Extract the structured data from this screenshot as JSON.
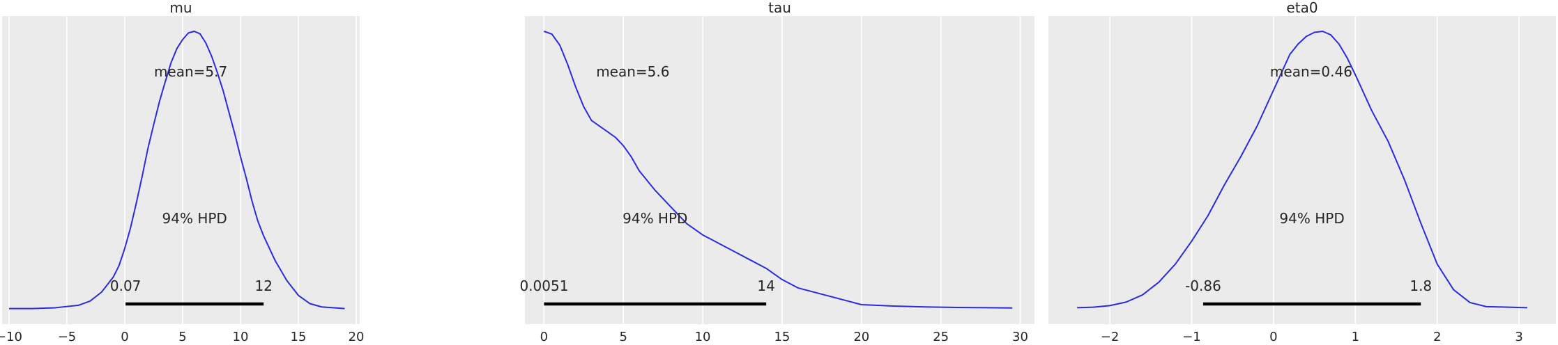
{
  "chart_data": [
    {
      "type": "line",
      "title": "mu",
      "xlim": [
        -10.6,
        20.3
      ],
      "xticks": [
        -10,
        -5,
        0,
        5,
        10,
        15,
        20
      ],
      "x": [
        -10,
        -8,
        -6,
        -4,
        -3,
        -2,
        -1,
        -0.5,
        0,
        0.5,
        1,
        1.5,
        2,
        2.5,
        3,
        3.5,
        4,
        4.5,
        5,
        5.5,
        6,
        6.5,
        7,
        7.5,
        8,
        8.5,
        9,
        9.5,
        10,
        10.5,
        11,
        11.5,
        12,
        12.5,
        13,
        14,
        15,
        16,
        17,
        19
      ],
      "y": [
        0.002,
        0.002,
        0.003,
        0.006,
        0.011,
        0.022,
        0.04,
        0.054,
        0.075,
        0.1,
        0.13,
        0.162,
        0.196,
        0.225,
        0.253,
        0.277,
        0.3,
        0.317,
        0.328,
        0.336,
        0.338,
        0.335,
        0.324,
        0.308,
        0.288,
        0.266,
        0.24,
        0.214,
        0.186,
        0.16,
        0.132,
        0.108,
        0.09,
        0.075,
        0.06,
        0.036,
        0.018,
        0.008,
        0.004,
        0.002
      ],
      "mean_label": "mean=5.7",
      "hpd_label": "94% HPD",
      "hpd": [
        0.07,
        12
      ],
      "hpd_labels": [
        "0.07",
        "12"
      ]
    },
    {
      "type": "line",
      "title": "tau",
      "xlim": [
        -1.2,
        30.9
      ],
      "xticks": [
        0,
        5,
        10,
        15,
        20,
        25,
        30
      ],
      "x": [
        0,
        0.5,
        1,
        1.5,
        2,
        2.5,
        3,
        3.5,
        4,
        4.5,
        5,
        5.5,
        6,
        7,
        8,
        9,
        10,
        11,
        12,
        13,
        14,
        15,
        16,
        17,
        18,
        19,
        20,
        22,
        24,
        26,
        28,
        29.5
      ],
      "y": [
        0.1,
        0.099,
        0.095,
        0.088,
        0.08,
        0.073,
        0.068,
        0.066,
        0.064,
        0.062,
        0.059,
        0.055,
        0.05,
        0.043,
        0.037,
        0.031,
        0.027,
        0.024,
        0.021,
        0.018,
        0.015,
        0.011,
        0.008,
        0.0065,
        0.005,
        0.0035,
        0.002,
        0.0015,
        0.0012,
        0.001,
        0.0009,
        0.0008
      ],
      "mean_label": "mean=5.6",
      "hpd_label": "94% HPD",
      "hpd": [
        0.0051,
        14
      ],
      "hpd_labels": [
        "0.0051",
        "14"
      ]
    },
    {
      "type": "line",
      "title": "eta0",
      "xlim": [
        -2.75,
        3.45
      ],
      "xticks": [
        -2,
        -1,
        0,
        1,
        2,
        3
      ],
      "x": [
        -2.4,
        -2.2,
        -2,
        -1.8,
        -1.6,
        -1.4,
        -1.2,
        -1,
        -0.8,
        -0.6,
        -0.4,
        -0.2,
        0,
        0.1,
        0.2,
        0.3,
        0.4,
        0.5,
        0.6,
        0.7,
        0.8,
        0.9,
        1,
        1.1,
        1.2,
        1.4,
        1.6,
        1.8,
        2,
        2.2,
        2.4,
        2.6,
        3.1
      ],
      "y": [
        0.005,
        0.006,
        0.009,
        0.016,
        0.03,
        0.055,
        0.09,
        0.135,
        0.185,
        0.245,
        0.3,
        0.36,
        0.43,
        0.465,
        0.5,
        0.52,
        0.535,
        0.543,
        0.545,
        0.538,
        0.52,
        0.493,
        0.46,
        0.425,
        0.39,
        0.33,
        0.255,
        0.17,
        0.09,
        0.04,
        0.015,
        0.007,
        0.005
      ],
      "mean_label": "mean=0.46",
      "hpd_label": "94% HPD",
      "hpd": [
        -0.86,
        1.8
      ],
      "hpd_labels": [
        "-0.86",
        "1.8"
      ]
    }
  ],
  "colors": {
    "curve": "#2a2adf",
    "background": "#ebebeb",
    "grid": "#ffffff",
    "hpd_bar": "#000000",
    "text": "#262626"
  }
}
